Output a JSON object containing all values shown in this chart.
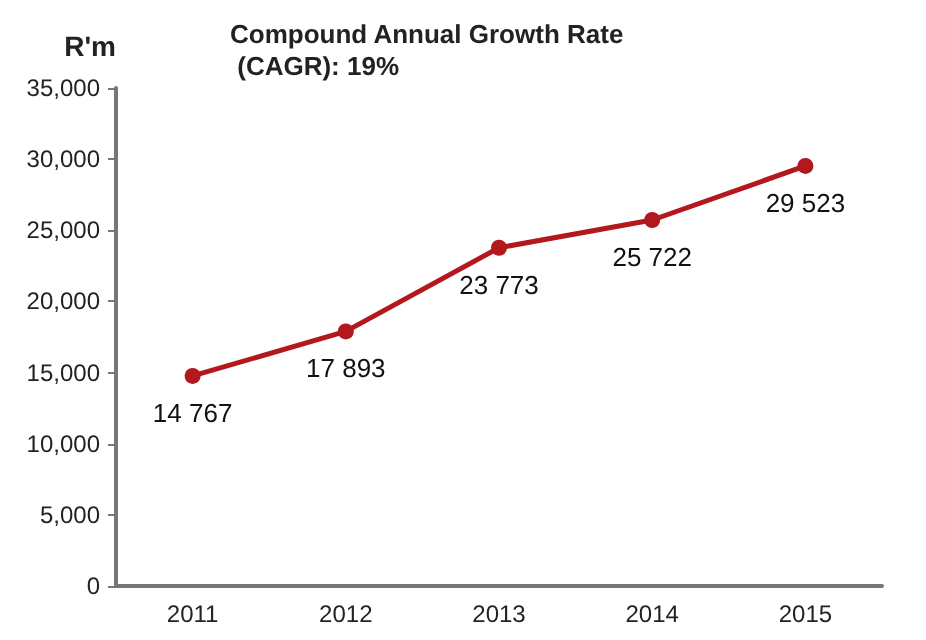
{
  "chart_data": {
    "type": "line",
    "title": "Compound Annual Growth Rate (CAGR): 19%",
    "ylabel": "R'm",
    "categories": [
      "2011",
      "2012",
      "2013",
      "2014",
      "2015"
    ],
    "series": [
      {
        "color": "#b3181d",
        "values": [
          14767,
          17893,
          23773,
          25722,
          29523
        ],
        "value_labels": [
          "14 767",
          "17 893",
          "23 773",
          "25 722",
          "29 523"
        ]
      }
    ],
    "ylim": [
      0,
      35000
    ],
    "yticks": [
      {
        "value": 0,
        "label": "0"
      },
      {
        "value": 5000,
        "label": "5,000"
      },
      {
        "value": 10000,
        "label": "10,000"
      },
      {
        "value": 15000,
        "label": "15,000"
      },
      {
        "value": 20000,
        "label": "20,000"
      },
      {
        "value": 25000,
        "label": "25,000"
      },
      {
        "value": 30000,
        "label": "30,000"
      },
      {
        "value": 35000,
        "label": "35,000"
      }
    ],
    "grid": false,
    "marker": "circle",
    "line_style": "solid"
  }
}
